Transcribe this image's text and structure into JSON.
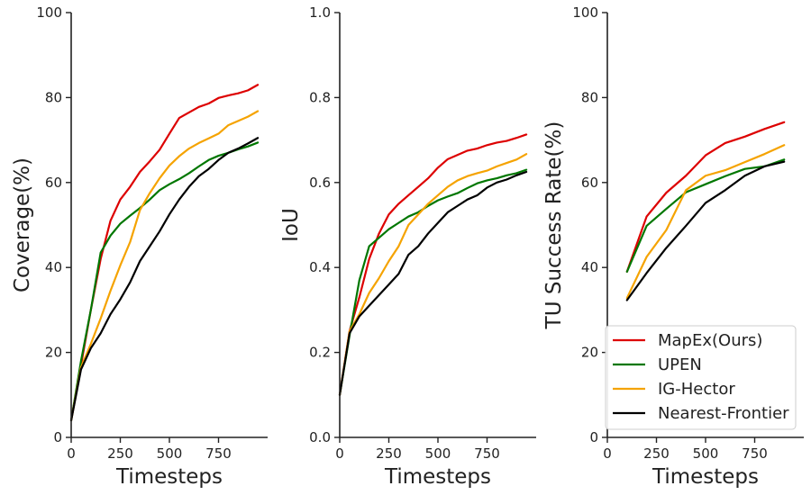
{
  "chart_data": [
    {
      "type": "line",
      "xlabel": "Timesteps",
      "ylabel": "Coverage(%)",
      "xlim": [
        0,
        1000
      ],
      "ylim": [
        0,
        100
      ],
      "xticks": [
        "0",
        "250",
        "500",
        "750"
      ],
      "yticks": [
        "0",
        "20",
        "40",
        "60",
        "80",
        "100"
      ],
      "series": [
        {
          "name": "MapEx(Ours)",
          "x": [
            0,
            50,
            100,
            150,
            200,
            250,
            300,
            350,
            400,
            450,
            500,
            550,
            600,
            650,
            700,
            750,
            800,
            850,
            900,
            950
          ],
          "values": [
            4,
            17,
            30,
            42,
            51,
            56,
            59,
            62.5,
            65,
            67.7,
            71.5,
            75.2,
            76.5,
            77.8,
            78.6,
            79.9,
            80.5,
            81,
            81.7,
            83
          ]
        },
        {
          "name": "UPEN",
          "x": [
            0,
            50,
            100,
            150,
            200,
            250,
            300,
            350,
            400,
            450,
            500,
            550,
            600,
            650,
            700,
            750,
            800,
            850,
            900,
            950
          ],
          "values": [
            4,
            18,
            30,
            43.5,
            47.5,
            50.3,
            52.2,
            54,
            56,
            58.2,
            59.6,
            60.8,
            62.2,
            63.8,
            65.3,
            66.3,
            67,
            67.8,
            68.5,
            69.4
          ]
        },
        {
          "name": "IG-Hector",
          "x": [
            0,
            50,
            100,
            150,
            200,
            250,
            300,
            350,
            400,
            450,
            500,
            550,
            600,
            650,
            700,
            750,
            800,
            850,
            900,
            950
          ],
          "values": [
            4,
            16.5,
            22,
            28,
            34.5,
            40.5,
            46,
            53.5,
            57.5,
            61,
            64,
            66.2,
            68,
            69.3,
            70.4,
            71.5,
            73.5,
            74.5,
            75.5,
            76.8
          ]
        },
        {
          "name": "Nearest-Frontier",
          "x": [
            0,
            50,
            100,
            150,
            200,
            250,
            300,
            350,
            400,
            450,
            500,
            550,
            600,
            650,
            700,
            750,
            800,
            850,
            900,
            950
          ],
          "values": [
            4,
            16,
            21,
            24.5,
            29,
            32.5,
            36.5,
            41.5,
            45,
            48.5,
            52.5,
            56,
            59,
            61.5,
            63.2,
            65.3,
            67,
            68,
            69.2,
            70.5
          ]
        }
      ]
    },
    {
      "type": "line",
      "xlabel": "Timesteps",
      "ylabel": "IoU",
      "xlim": [
        0,
        1000
      ],
      "ylim": [
        0,
        1
      ],
      "xticks": [
        "0",
        "250",
        "500",
        "750"
      ],
      "yticks": [
        "0.0",
        "0.2",
        "0.4",
        "0.6",
        "0.8",
        "1.0"
      ],
      "series": [
        {
          "name": "MapEx(Ours)",
          "x": [
            0,
            50,
            100,
            150,
            200,
            250,
            300,
            350,
            400,
            450,
            500,
            550,
            600,
            650,
            700,
            750,
            800,
            850,
            900,
            950
          ],
          "values": [
            0.1,
            0.25,
            0.33,
            0.42,
            0.48,
            0.525,
            0.55,
            0.57,
            0.59,
            0.61,
            0.635,
            0.655,
            0.665,
            0.675,
            0.68,
            0.688,
            0.694,
            0.698,
            0.705,
            0.713
          ]
        },
        {
          "name": "UPEN",
          "x": [
            0,
            50,
            100,
            150,
            200,
            250,
            300,
            350,
            400,
            450,
            500,
            550,
            600,
            650,
            700,
            750,
            800,
            850,
            900,
            950
          ],
          "values": [
            0.1,
            0.24,
            0.37,
            0.45,
            0.47,
            0.49,
            0.505,
            0.52,
            0.53,
            0.545,
            0.558,
            0.567,
            0.575,
            0.587,
            0.598,
            0.605,
            0.61,
            0.617,
            0.622,
            0.63
          ]
        },
        {
          "name": "IG-Hector",
          "x": [
            0,
            50,
            100,
            150,
            200,
            250,
            300,
            350,
            400,
            450,
            500,
            550,
            600,
            650,
            700,
            750,
            800,
            850,
            900,
            950
          ],
          "values": [
            0.1,
            0.25,
            0.29,
            0.34,
            0.375,
            0.415,
            0.45,
            0.5,
            0.525,
            0.55,
            0.57,
            0.59,
            0.605,
            0.615,
            0.622,
            0.628,
            0.638,
            0.646,
            0.654,
            0.667
          ]
        },
        {
          "name": "Nearest-Frontier",
          "x": [
            0,
            50,
            100,
            150,
            200,
            250,
            300,
            350,
            400,
            450,
            500,
            550,
            600,
            650,
            700,
            750,
            800,
            850,
            900,
            950
          ],
          "values": [
            0.1,
            0.245,
            0.285,
            0.31,
            0.335,
            0.36,
            0.385,
            0.43,
            0.45,
            0.48,
            0.505,
            0.53,
            0.545,
            0.56,
            0.57,
            0.588,
            0.6,
            0.607,
            0.617,
            0.625
          ]
        }
      ]
    },
    {
      "type": "line",
      "xlabel": "Timesteps",
      "ylabel": "TU Success Rate(%)",
      "xlim": [
        0,
        1000
      ],
      "ylim": [
        0,
        100
      ],
      "xticks": [
        "0",
        "250",
        "500",
        "750"
      ],
      "yticks": [
        "0",
        "20",
        "40",
        "60",
        "80",
        "100"
      ],
      "legend_loc": "lower-right",
      "series": [
        {
          "name": "MapEx(Ours)",
          "color": "#dd0000",
          "x": [
            100,
            200,
            300,
            400,
            500,
            600,
            700,
            800,
            900
          ],
          "values": [
            39,
            52,
            57.6,
            61.6,
            66.4,
            69.3,
            70.8,
            72.6,
            74.2
          ]
        },
        {
          "name": "UPEN",
          "color": "#007700",
          "x": [
            100,
            200,
            300,
            400,
            500,
            600,
            700,
            800,
            900
          ],
          "values": [
            39,
            49.8,
            53.8,
            57.7,
            59.6,
            61.5,
            63.2,
            63.8,
            65.4
          ]
        },
        {
          "name": "IG-Hector",
          "color": "#f5a300",
          "x": [
            100,
            200,
            300,
            400,
            500,
            600,
            700,
            800,
            900
          ],
          "values": [
            32.8,
            42.5,
            48.8,
            58.2,
            61.6,
            62.9,
            64.8,
            66.7,
            68.8
          ]
        },
        {
          "name": "Nearest-Frontier",
          "color": "#000000",
          "x": [
            100,
            200,
            300,
            400,
            500,
            600,
            700,
            800,
            900
          ],
          "values": [
            32.3,
            38.7,
            44.6,
            49.8,
            55.2,
            58.2,
            61.6,
            63.8,
            64.9
          ]
        }
      ]
    }
  ]
}
